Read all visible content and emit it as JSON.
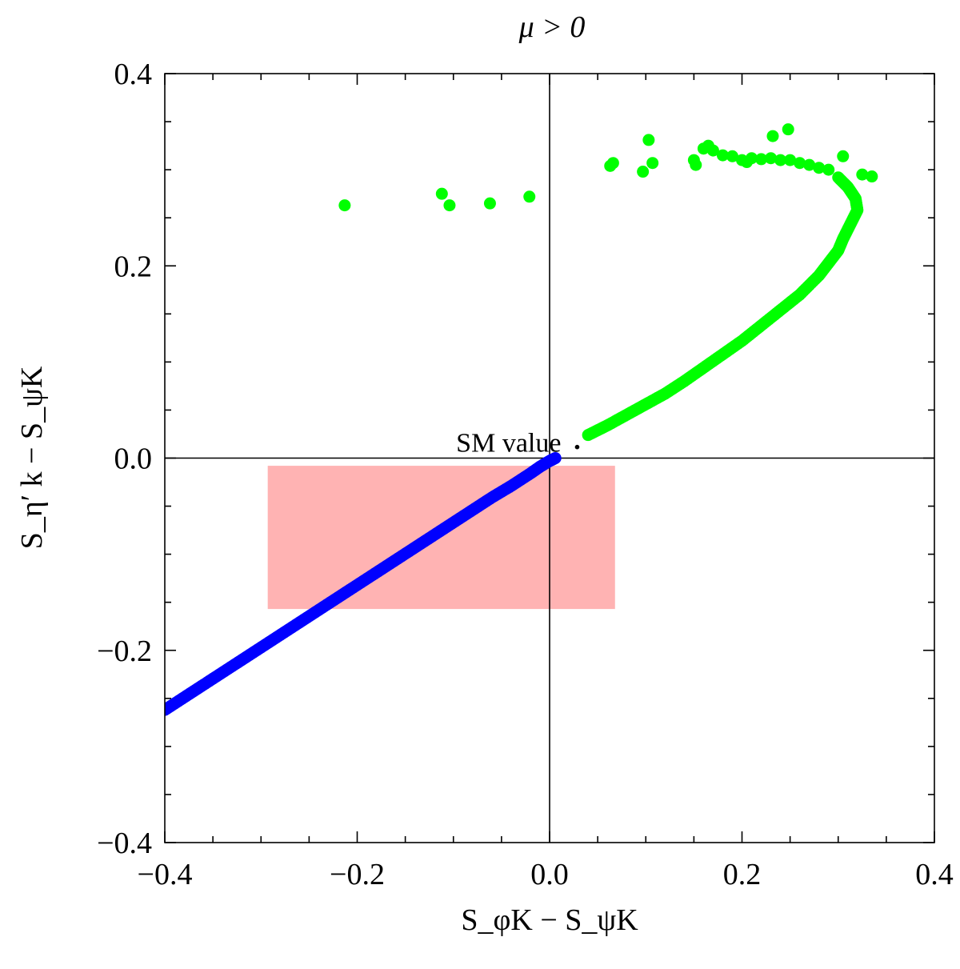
{
  "chart_data": {
    "type": "scatter",
    "title": "μ > 0",
    "xlabel": "S_φK − S_ψK",
    "ylabel": "S_η′ k − S_ψK",
    "xlim": [
      -0.4,
      0.4
    ],
    "ylim": [
      -0.4,
      0.4
    ],
    "x_ticks": [
      -0.4,
      -0.2,
      0.0,
      0.2,
      0.4
    ],
    "x_tick_labels": [
      "−0.4",
      "−0.2",
      "0.0",
      "0.2",
      "0.4"
    ],
    "y_ticks": [
      -0.4,
      -0.2,
      0.0,
      0.2,
      0.4
    ],
    "y_tick_labels": [
      "−0.4",
      "−0.2",
      "0.0",
      "0.2",
      "0.4"
    ],
    "grid": false,
    "zero_lines": true,
    "shaded_region": {
      "x": [
        -0.293,
        0.068
      ],
      "y": [
        -0.157,
        -0.008
      ],
      "color": "#ffb3b3"
    },
    "annotation": {
      "text": "SM  value",
      "x": 0.022,
      "y": 0.009
    },
    "series": [
      {
        "name": "blue",
        "color": "#0000ff",
        "x": [
          -0.4,
          -0.38,
          -0.36,
          -0.34,
          -0.32,
          -0.3,
          -0.28,
          -0.26,
          -0.24,
          -0.22,
          -0.2,
          -0.18,
          -0.16,
          -0.14,
          -0.12,
          -0.1,
          -0.08,
          -0.06,
          -0.04,
          -0.02,
          -0.01,
          0.0,
          0.006
        ],
        "y": [
          -0.262,
          -0.249,
          -0.236,
          -0.223,
          -0.21,
          -0.197,
          -0.184,
          -0.171,
          -0.158,
          -0.145,
          -0.132,
          -0.119,
          -0.106,
          -0.093,
          -0.08,
          -0.067,
          -0.054,
          -0.041,
          -0.029,
          -0.016,
          -0.009,
          -0.003,
          0.0
        ]
      },
      {
        "name": "green",
        "color": "#00ff00",
        "x": [
          0.04,
          0.06,
          0.08,
          0.1,
          0.12,
          0.14,
          0.16,
          0.18,
          0.2,
          0.22,
          0.24,
          0.26,
          0.28,
          0.29,
          0.3,
          0.305,
          0.31,
          0.315,
          0.32,
          0.318,
          0.31,
          0.3,
          0.29,
          0.28,
          0.27,
          0.26,
          0.25,
          0.24,
          0.23,
          0.22,
          0.21,
          0.2,
          0.19,
          0.18,
          0.17,
          0.16,
          0.15,
          0.335,
          0.325,
          0.305,
          0.248,
          0.232,
          0.205,
          0.165,
          0.152,
          0.107,
          0.103,
          0.097,
          0.066,
          0.063,
          -0.021,
          -0.062,
          -0.104,
          -0.112,
          -0.213
        ],
        "y": [
          0.024,
          0.034,
          0.045,
          0.056,
          0.067,
          0.08,
          0.094,
          0.108,
          0.122,
          0.138,
          0.154,
          0.17,
          0.19,
          0.203,
          0.216,
          0.228,
          0.238,
          0.248,
          0.258,
          0.27,
          0.282,
          0.292,
          0.3,
          0.302,
          0.305,
          0.307,
          0.31,
          0.31,
          0.312,
          0.311,
          0.312,
          0.31,
          0.314,
          0.315,
          0.32,
          0.322,
          0.31,
          0.293,
          0.295,
          0.314,
          0.342,
          0.335,
          0.308,
          0.325,
          0.305,
          0.307,
          0.331,
          0.298,
          0.307,
          0.304,
          0.272,
          0.265,
          0.263,
          0.275,
          0.263
        ]
      }
    ]
  }
}
